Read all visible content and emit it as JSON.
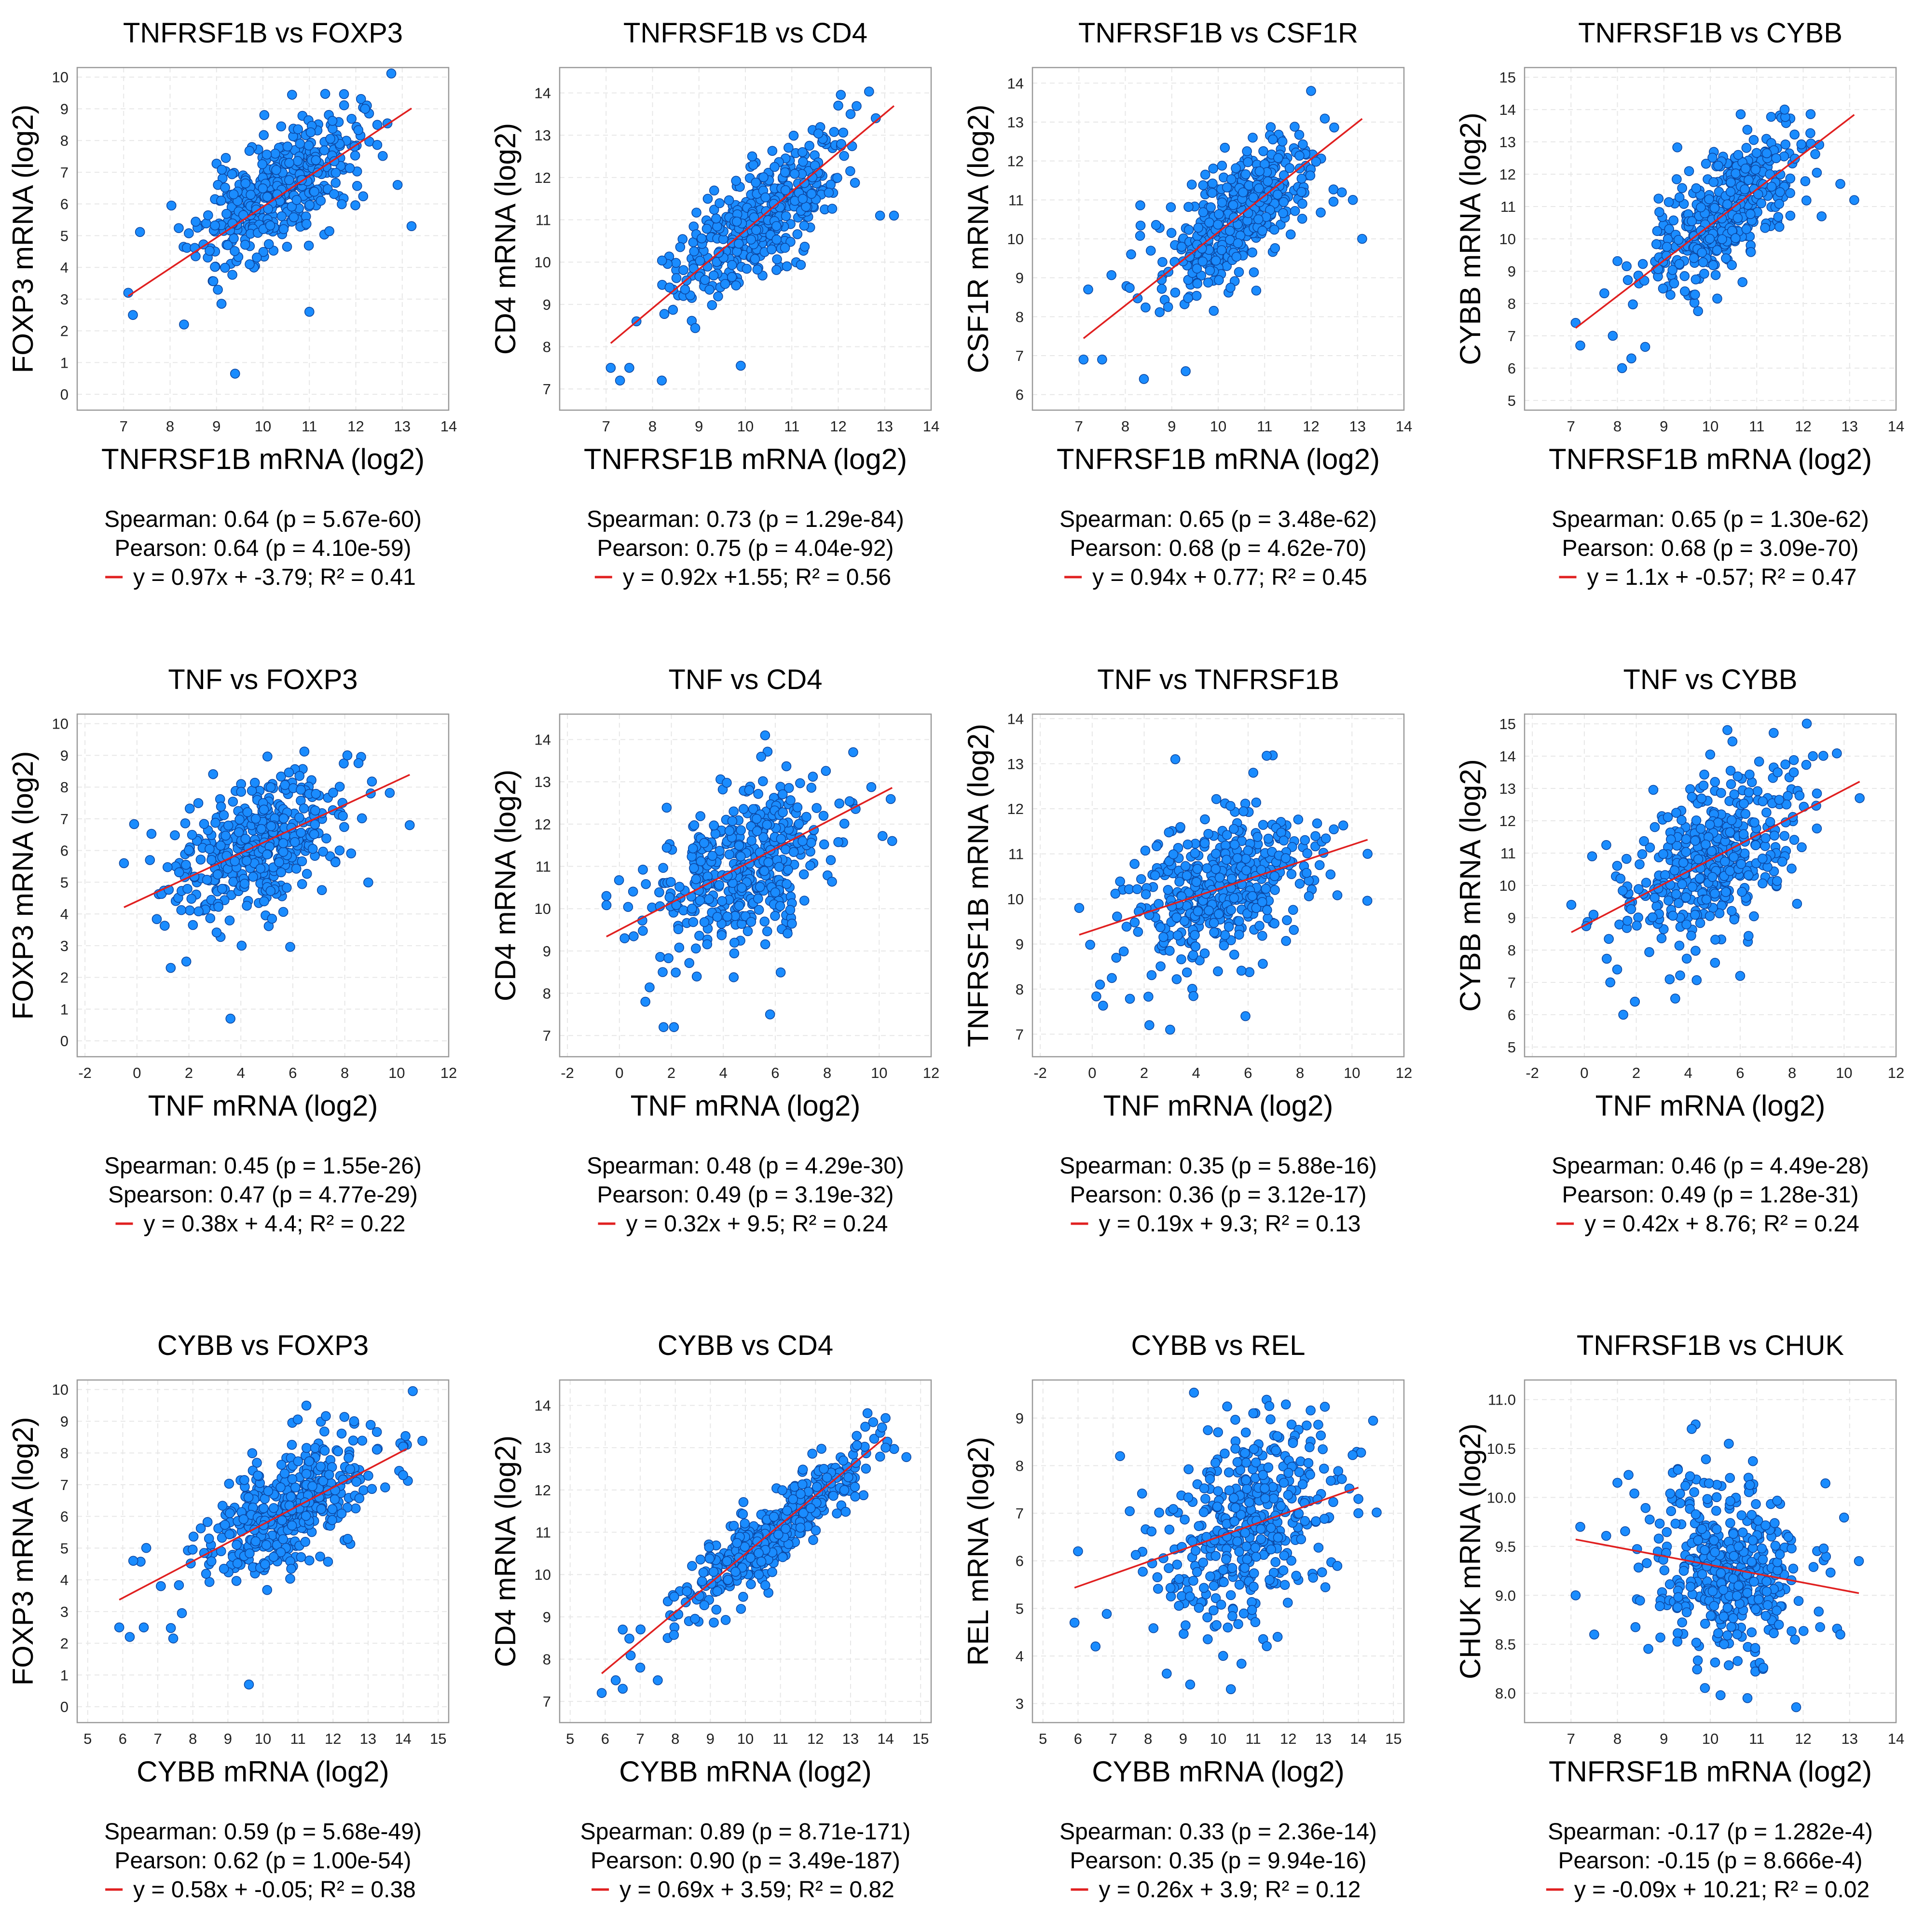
{
  "chart_data": [
    {
      "type": "scatter",
      "title": "TNFRSF1B vs FOXP3",
      "xlabel": "TNFRSF1B mRNA (log2)",
      "ylabel": "FOXP3 mRNA (log2)",
      "xlim": [
        6,
        14
      ],
      "ylim": [
        -0.5,
        10.3
      ],
      "xticks": [
        7,
        8,
        9,
        10,
        11,
        12,
        13,
        14
      ],
      "yticks": [
        0,
        1,
        2,
        3,
        4,
        5,
        6,
        7,
        8,
        9,
        10
      ],
      "fit": {
        "slope": 0.97,
        "intercept": -3.79,
        "x0": 7.1,
        "x1": 13.2
      },
      "points": {
        "n": 430,
        "center_x": 10.3,
        "center_y": 6.4,
        "spread_x": 0.85,
        "spread_y": 1.15,
        "rho": 0.64,
        "seed": 11
      },
      "outliers": [
        [
          7.1,
          3.2
        ],
        [
          7.2,
          2.5
        ],
        [
          8.3,
          2.2
        ],
        [
          9.4,
          0.65
        ],
        [
          12.9,
          6.6
        ],
        [
          13.2,
          5.3
        ],
        [
          11.0,
          2.6
        ],
        [
          12.2,
          9.0
        ]
      ],
      "stats": [
        "Spearman: 0.64 (p = 5.67e-60)",
        "Pearson: 0.64 (p = 4.10e-59)",
        "y = 0.97x + -3.79; R² = 0.41"
      ]
    },
    {
      "type": "scatter",
      "title": "TNFRSF1B vs CD4",
      "xlabel": "TNFRSF1B mRNA (log2)",
      "ylabel": "CD4 mRNA (log2)",
      "xlim": [
        6,
        14
      ],
      "ylim": [
        6.5,
        14.6
      ],
      "xticks": [
        7,
        8,
        9,
        10,
        11,
        12,
        13,
        14
      ],
      "yticks": [
        7,
        8,
        9,
        10,
        11,
        12,
        13,
        14
      ],
      "fit": {
        "slope": 0.92,
        "intercept": 1.55,
        "x0": 7.1,
        "x1": 13.2
      },
      "points": {
        "n": 430,
        "center_x": 10.3,
        "center_y": 11.0,
        "spread_x": 0.85,
        "spread_y": 0.9,
        "rho": 0.75,
        "seed": 12
      },
      "outliers": [
        [
          7.1,
          7.5
        ],
        [
          7.3,
          7.2
        ],
        [
          7.5,
          7.5
        ],
        [
          8.2,
          7.2
        ],
        [
          9.9,
          7.55
        ],
        [
          12.9,
          11.1
        ],
        [
          13.2,
          11.1
        ],
        [
          12.0,
          13.7
        ]
      ],
      "stats": [
        "Spearman: 0.73 (p = 1.29e-84)",
        "Pearson: 0.75 (p = 4.04e-92)",
        "y = 0.92x +1.55; R² = 0.56"
      ]
    },
    {
      "type": "scatter",
      "title": "TNFRSF1B vs CSF1R",
      "xlabel": "TNFRSF1B mRNA (log2)",
      "ylabel": "CSF1R mRNA (log2)",
      "xlim": [
        6,
        14
      ],
      "ylim": [
        5.6,
        14.4
      ],
      "xticks": [
        7,
        8,
        9,
        10,
        11,
        12,
        13,
        14
      ],
      "yticks": [
        6,
        7,
        8,
        9,
        10,
        11,
        12,
        13,
        14
      ],
      "fit": {
        "slope": 0.94,
        "intercept": 0.77,
        "x0": 7.1,
        "x1": 13.1
      },
      "points": {
        "n": 430,
        "center_x": 10.3,
        "center_y": 10.5,
        "spread_x": 0.85,
        "spread_y": 1.0,
        "rho": 0.68,
        "seed": 13
      },
      "outliers": [
        [
          7.1,
          6.9
        ],
        [
          7.5,
          6.9
        ],
        [
          8.4,
          6.4
        ],
        [
          9.3,
          6.6
        ],
        [
          12.9,
          11.0
        ],
        [
          13.1,
          10.0
        ],
        [
          12.0,
          13.8
        ],
        [
          7.2,
          8.7
        ]
      ],
      "stats": [
        "Spearman: 0.65 (p = 3.48e-62)",
        "Pearson: 0.68 (p = 4.62e-70)",
        "y = 0.94x + 0.77; R² = 0.45"
      ]
    },
    {
      "type": "scatter",
      "title": "TNFRSF1B vs CYBB",
      "xlabel": "TNFRSF1B mRNA (log2)",
      "ylabel": "CYBB mRNA (log2)",
      "xlim": [
        6,
        14
      ],
      "ylim": [
        4.7,
        15.3
      ],
      "xticks": [
        7,
        8,
        9,
        10,
        11,
        12,
        13,
        14
      ],
      "yticks": [
        5,
        6,
        7,
        8,
        9,
        10,
        11,
        12,
        13,
        14,
        15
      ],
      "fit": {
        "slope": 1.1,
        "intercept": -0.57,
        "x0": 7.1,
        "x1": 13.1
      },
      "points": {
        "n": 430,
        "center_x": 10.3,
        "center_y": 10.8,
        "spread_x": 0.85,
        "spread_y": 1.25,
        "rho": 0.68,
        "seed": 14
      },
      "outliers": [
        [
          7.1,
          7.4
        ],
        [
          7.2,
          6.7
        ],
        [
          8.1,
          6.0
        ],
        [
          8.3,
          6.3
        ],
        [
          12.8,
          11.7
        ],
        [
          13.1,
          11.2
        ],
        [
          11.6,
          14.0
        ],
        [
          7.9,
          7.0
        ]
      ],
      "stats": [
        "Spearman: 0.65 (p = 1.30e-62)",
        "Pearson: 0.68 (p = 3.09e-70)",
        "y = 1.1x + -0.57; R² = 0.47"
      ]
    },
    {
      "type": "scatter",
      "title": "TNF vs FOXP3",
      "xlabel": "TNF mRNA (log2)",
      "ylabel": "FOXP3 mRNA (log2)",
      "xlim": [
        -2.3,
        12
      ],
      "ylim": [
        -0.5,
        10.3
      ],
      "xticks": [
        -2,
        0,
        2,
        4,
        6,
        8,
        10,
        12
      ],
      "yticks": [
        0,
        1,
        2,
        3,
        4,
        5,
        6,
        7,
        8,
        9,
        10
      ],
      "fit": {
        "slope": 0.38,
        "intercept": 4.4,
        "x0": -0.5,
        "x1": 10.5
      },
      "points": {
        "n": 430,
        "center_x": 4.7,
        "center_y": 6.2,
        "spread_x": 1.7,
        "spread_y": 1.2,
        "rho": 0.47,
        "seed": 21
      },
      "outliers": [
        [
          -0.5,
          5.6
        ],
        [
          0.5,
          5.7
        ],
        [
          3.6,
          0.7
        ],
        [
          10.5,
          6.8
        ],
        [
          8.1,
          9.0
        ],
        [
          1.3,
          2.3
        ],
        [
          1.9,
          2.5
        ],
        [
          9.0,
          7.8
        ]
      ],
      "stats": [
        "Spearman: 0.45 (p = 1.55e-26)",
        "Spearson: 0.47 (p = 4.77e-29)",
        "y = 0.38x + 4.4; R² = 0.22"
      ]
    },
    {
      "type": "scatter",
      "title": "TNF vs CD4",
      "xlabel": "TNF mRNA (log2)",
      "ylabel": "CD4 mRNA (log2)",
      "xlim": [
        -2.3,
        12
      ],
      "ylim": [
        6.5,
        14.6
      ],
      "xticks": [
        -2,
        0,
        2,
        4,
        6,
        8,
        10,
        12
      ],
      "yticks": [
        7,
        8,
        9,
        10,
        11,
        12,
        13,
        14
      ],
      "fit": {
        "slope": 0.32,
        "intercept": 9.5,
        "x0": -0.5,
        "x1": 10.5
      },
      "points": {
        "n": 430,
        "center_x": 4.8,
        "center_y": 11.0,
        "spread_x": 1.7,
        "spread_y": 1.0,
        "rho": 0.49,
        "seed": 22
      },
      "outliers": [
        [
          -0.5,
          10.3
        ],
        [
          1.7,
          7.2
        ],
        [
          2.1,
          7.2
        ],
        [
          5.8,
          7.5
        ],
        [
          9.0,
          13.7
        ],
        [
          10.5,
          11.6
        ],
        [
          1.0,
          7.8
        ],
        [
          0.2,
          9.3
        ]
      ],
      "stats": [
        "Spearman: 0.48 (p = 4.29e-30)",
        "Pearson: 0.49 (p = 3.19e-32)",
        "y = 0.32x + 9.5; R² = 0.24"
      ]
    },
    {
      "type": "scatter",
      "title": "TNF vs TNFRSF1B",
      "xlabel": "TNF mRNA (log2)",
      "ylabel": "TNFRSF1B mRNA (log2)",
      "xlim": [
        -2.3,
        12
      ],
      "ylim": [
        6.5,
        14.1
      ],
      "xticks": [
        -2,
        0,
        2,
        4,
        6,
        8,
        10,
        12
      ],
      "yticks": [
        7,
        8,
        9,
        10,
        11,
        12,
        13,
        14
      ],
      "fit": {
        "slope": 0.19,
        "intercept": 9.3,
        "x0": -0.5,
        "x1": 10.6
      },
      "points": {
        "n": 430,
        "center_x": 4.8,
        "center_y": 10.2,
        "spread_x": 1.7,
        "spread_y": 0.85,
        "rho": 0.36,
        "seed": 23
      },
      "outliers": [
        [
          -0.5,
          9.8
        ],
        [
          0.3,
          8.1
        ],
        [
          3.2,
          13.1
        ],
        [
          6.2,
          12.8
        ],
        [
          10.6,
          11.0
        ],
        [
          2.2,
          7.2
        ],
        [
          3.0,
          7.1
        ],
        [
          5.9,
          7.4
        ]
      ],
      "stats": [
        "Spearman: 0.35 (p = 5.88e-16)",
        "Pearson: 0.36 (p = 3.12e-17)",
        "y = 0.19x + 9.3; R² = 0.13"
      ]
    },
    {
      "type": "scatter",
      "title": "TNF vs CYBB",
      "xlabel": "TNF mRNA (log2)",
      "ylabel": "CYBB mRNA (log2)",
      "xlim": [
        -2.3,
        12
      ],
      "ylim": [
        4.7,
        15.3
      ],
      "xticks": [
        -2,
        0,
        2,
        4,
        6,
        8,
        10,
        12
      ],
      "yticks": [
        5,
        6,
        7,
        8,
        9,
        10,
        11,
        12,
        13,
        14,
        15
      ],
      "fit": {
        "slope": 0.42,
        "intercept": 8.76,
        "x0": -0.5,
        "x1": 10.6
      },
      "points": {
        "n": 430,
        "center_x": 4.8,
        "center_y": 10.8,
        "spread_x": 1.7,
        "spread_y": 1.35,
        "rho": 0.49,
        "seed": 24
      },
      "outliers": [
        [
          -0.5,
          9.4
        ],
        [
          1.0,
          7.0
        ],
        [
          1.5,
          6.0
        ],
        [
          3.5,
          6.5
        ],
        [
          8.8,
          14.0
        ],
        [
          10.6,
          12.7
        ],
        [
          6.0,
          7.2
        ],
        [
          0.3,
          10.9
        ]
      ],
      "stats": [
        "Spearman: 0.46 (p = 4.49e-28)",
        "Pearson: 0.49 (p = 1.28e-31)",
        "y = 0.42x + 8.76; R² = 0.24"
      ]
    },
    {
      "type": "scatter",
      "title": "CYBB vs FOXP3",
      "xlabel": "CYBB mRNA (log2)",
      "ylabel": "FOXP3 mRNA (log2)",
      "xlim": [
        4.7,
        15.3
      ],
      "ylim": [
        -0.5,
        10.3
      ],
      "xticks": [
        5,
        6,
        7,
        8,
        9,
        10,
        11,
        12,
        13,
        14,
        15
      ],
      "yticks": [
        0,
        1,
        2,
        3,
        4,
        5,
        6,
        7,
        8,
        9,
        10
      ],
      "fit": {
        "slope": 0.58,
        "intercept": -0.05,
        "x0": 5.9,
        "x1": 14.1
      },
      "points": {
        "n": 430,
        "center_x": 10.8,
        "center_y": 6.3,
        "spread_x": 1.3,
        "spread_y": 1.2,
        "rho": 0.62,
        "seed": 31
      },
      "outliers": [
        [
          5.9,
          2.5
        ],
        [
          6.2,
          2.2
        ],
        [
          6.6,
          2.5
        ],
        [
          9.6,
          0.7
        ],
        [
          14.0,
          8.2
        ],
        [
          14.0,
          7.3
        ],
        [
          12.6,
          9.0
        ],
        [
          6.3,
          4.6
        ]
      ],
      "stats": [
        "Spearman: 0.59 (p = 5.68e-49)",
        "Pearson: 0.62 (p = 1.00e-54)",
        "y = 0.58x + -0.05; R² = 0.38"
      ]
    },
    {
      "type": "scatter",
      "title": "CYBB vs CD4",
      "xlabel": "CYBB mRNA (log2)",
      "ylabel": "CD4 mRNA (log2)",
      "xlim": [
        4.7,
        15.3
      ],
      "ylim": [
        6.5,
        14.6
      ],
      "xticks": [
        5,
        6,
        7,
        8,
        9,
        10,
        11,
        12,
        13,
        14,
        15
      ],
      "yticks": [
        7,
        8,
        9,
        10,
        11,
        12,
        13,
        14
      ],
      "fit": {
        "slope": 0.69,
        "intercept": 3.59,
        "x0": 5.9,
        "x1": 14.0
      },
      "points": {
        "n": 430,
        "center_x": 10.8,
        "center_y": 11.0,
        "spread_x": 1.3,
        "spread_y": 0.95,
        "rho": 0.9,
        "seed": 32
      },
      "outliers": [
        [
          5.9,
          7.2
        ],
        [
          6.3,
          7.5
        ],
        [
          6.5,
          7.3
        ],
        [
          14.0,
          13.7
        ],
        [
          14.0,
          13.0
        ],
        [
          6.5,
          8.7
        ],
        [
          7.0,
          7.8
        ],
        [
          7.5,
          7.5
        ]
      ],
      "stats": [
        "Spearman: 0.89 (p = 8.71e-171)",
        "Pearson: 0.90 (p = 3.49e-187)",
        "y = 0.69x + 3.59; R² = 0.82"
      ]
    },
    {
      "type": "scatter",
      "title": "CYBB vs REL",
      "xlabel": "CYBB mRNA (log2)",
      "ylabel": "REL mRNA (log2)",
      "xlim": [
        4.7,
        15.3
      ],
      "ylim": [
        2.6,
        9.8
      ],
      "xticks": [
        5,
        6,
        7,
        8,
        9,
        10,
        11,
        12,
        13,
        14,
        15
      ],
      "yticks": [
        3,
        4,
        5,
        6,
        7,
        8,
        9
      ],
      "fit": {
        "slope": 0.26,
        "intercept": 3.9,
        "x0": 5.9,
        "x1": 14.0
      },
      "points": {
        "n": 430,
        "center_x": 10.8,
        "center_y": 6.7,
        "spread_x": 1.3,
        "spread_y": 1.1,
        "rho": 0.35,
        "seed": 33
      },
      "outliers": [
        [
          5.9,
          4.7
        ],
        [
          6.0,
          6.2
        ],
        [
          6.5,
          4.2
        ],
        [
          9.2,
          3.4
        ],
        [
          14.0,
          7.0
        ],
        [
          14.0,
          7.3
        ],
        [
          11.0,
          9.1
        ],
        [
          7.2,
          8.2
        ]
      ],
      "stats": [
        "Spearman: 0.33 (p = 2.36e-14)",
        "Pearson: 0.35 (p = 9.94e-16)",
        "y = 0.26x + 3.9; R² = 0.12"
      ]
    },
    {
      "type": "scatter",
      "title": "TNFRSF1B vs CHUK",
      "xlabel": "TNFRSF1B mRNA (log2)",
      "ylabel": "CHUK mRNA (log2)",
      "xlim": [
        6,
        14
      ],
      "ylim": [
        7.7,
        11.2
      ],
      "xticks": [
        7,
        8,
        9,
        10,
        11,
        12,
        13,
        14
      ],
      "yticks": [
        8.0,
        8.5,
        9.0,
        9.5,
        10.0,
        10.5,
        11.0
      ],
      "fit": {
        "slope": -0.09,
        "intercept": 10.21,
        "x0": 7.1,
        "x1": 13.2
      },
      "points": {
        "n": 430,
        "center_x": 10.3,
        "center_y": 9.25,
        "spread_x": 0.85,
        "spread_y": 0.45,
        "rho": -0.15,
        "seed": 34
      },
      "outliers": [
        [
          7.1,
          9.0
        ],
        [
          7.2,
          9.7
        ],
        [
          7.5,
          8.6
        ],
        [
          13.2,
          9.35
        ],
        [
          12.8,
          8.6
        ],
        [
          9.6,
          10.7
        ],
        [
          10.8,
          7.95
        ],
        [
          8.0,
          10.15
        ]
      ],
      "stats": [
        "Spearman: -0.17 (p = 1.282e-4)",
        "Pearson: -0.15 (p = 8.666e-4)",
        "y = -0.09x + 10.21; R² = 0.02"
      ]
    }
  ]
}
